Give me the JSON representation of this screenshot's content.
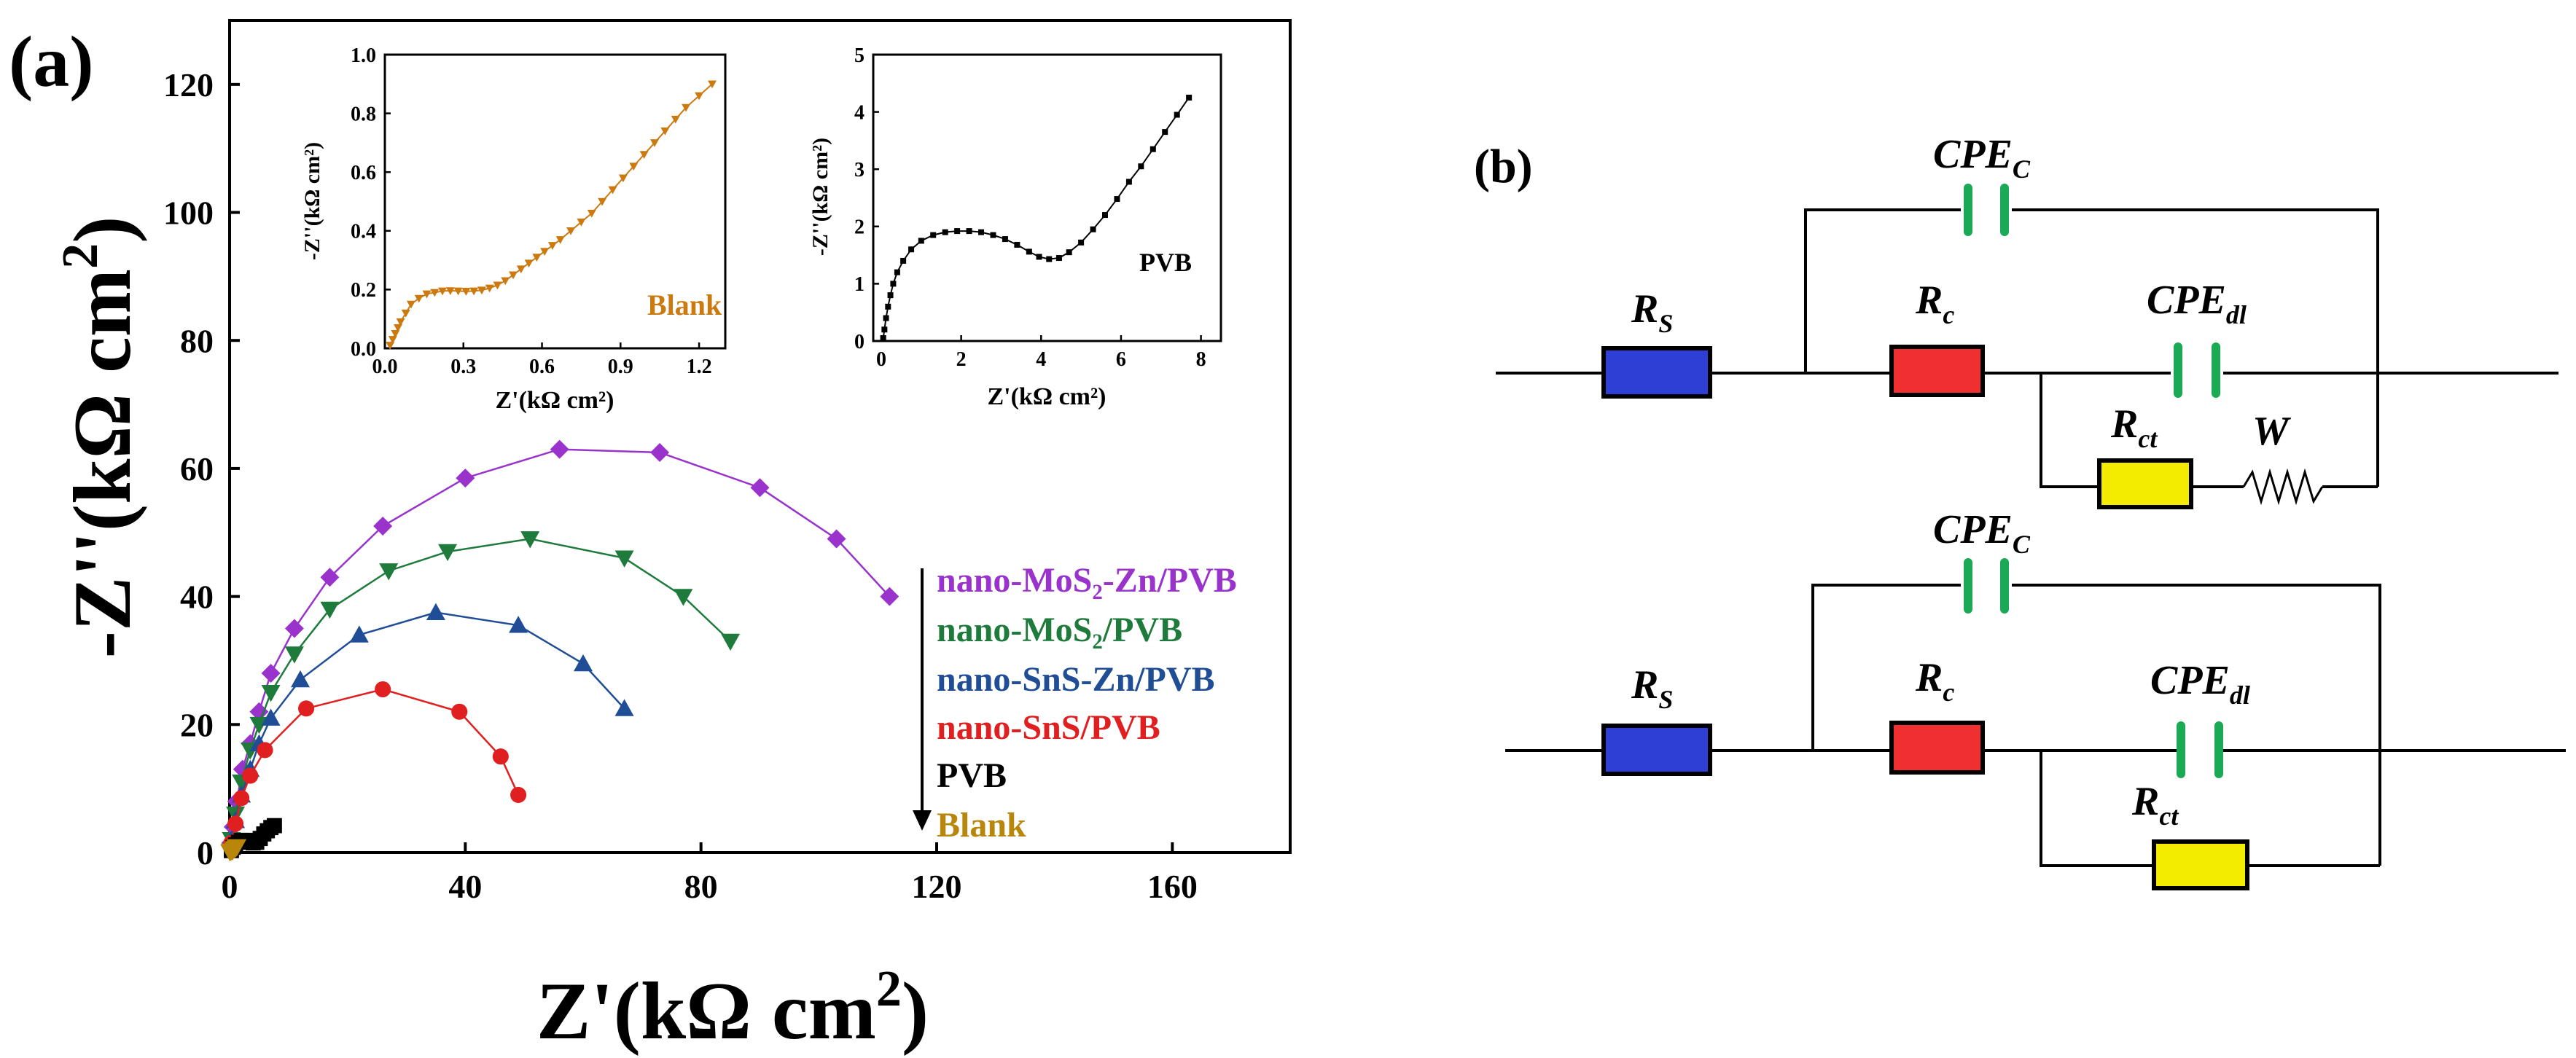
{
  "panel_a_label": "(a)",
  "panel_b_label": "(b)",
  "colors": {
    "mos2_zn": "#9933cc",
    "mos2": "#1e7b3c",
    "sns_zn": "#1f4e96",
    "sns": "#e02020",
    "pvb": "#000000",
    "blank": "#b8860b",
    "blank_inset": "#cc7a10",
    "resistor_blue": "#2e3fd6",
    "resistor_red": "#f03030",
    "resistor_yellow": "#f4ec00",
    "cpe_green": "#1aaa55"
  },
  "chart_data": [
    {
      "id": "main",
      "type": "scatter",
      "title": "",
      "xlabel_main": "Z'(kΩ cm",
      "xlabel_sup": "2",
      "xlabel_close": ")",
      "ylabel_main": "-Z''(kΩ cm",
      "ylabel_sup": "2",
      "ylabel_close": ")",
      "xlim": [
        0,
        180
      ],
      "ylim": [
        0,
        130
      ],
      "xticks": [
        "0",
        "40",
        "80",
        "120",
        "160"
      ],
      "xtick_values": [
        0,
        40,
        80,
        120,
        160
      ],
      "yticks": [
        "0",
        "20",
        "40",
        "60",
        "80",
        "100",
        "120"
      ],
      "ytick_values": [
        0,
        20,
        40,
        60,
        80,
        100,
        120
      ],
      "legend": [
        {
          "label": "nano-MoS₂-Zn/PVB",
          "series": "mos2_zn"
        },
        {
          "label": "nano-MoS₂/PVB",
          "series": "mos2"
        },
        {
          "label": "nano-SnS-Zn/PVB",
          "series": "sns_zn"
        },
        {
          "label": "nano-SnS/PVB",
          "series": "sns"
        },
        {
          "label": "PVB",
          "series": "pvb"
        },
        {
          "label": "Blank",
          "series": "blank"
        }
      ],
      "series": [
        {
          "name": "nano-MoS2-Zn/PVB",
          "key": "mos2_zn",
          "marker": "diamond",
          "x": [
            0.2,
            0.6,
            1.2,
            2.2,
            3.5,
            5,
            7,
            11,
            17,
            26,
            40,
            56,
            73,
            90,
            103,
            112
          ],
          "y": [
            1.5,
            4,
            8,
            13,
            17,
            22,
            28,
            35,
            43,
            51,
            58.5,
            63,
            62.5,
            57,
            49,
            40
          ]
        },
        {
          "name": "nano-MoS2/PVB",
          "key": "mos2",
          "marker": "triangle-down",
          "x": [
            0.3,
            1,
            2,
            3.5,
            5,
            7,
            11,
            17,
            27,
            37,
            51,
            67,
            77,
            85
          ],
          "y": [
            2,
            6,
            11,
            16,
            20,
            25,
            31,
            38,
            44,
            47,
            49,
            46,
            40,
            33
          ]
        },
        {
          "name": "nano-SnS-Zn/PVB",
          "key": "sns_zn",
          "marker": "triangle-up",
          "x": [
            0.3,
            1,
            2,
            3.5,
            5,
            7,
            12,
            22,
            35,
            49,
            60,
            67
          ],
          "y": [
            2,
            5,
            9,
            13,
            17,
            21,
            27,
            34,
            37.5,
            35.5,
            29.5,
            22.5
          ]
        },
        {
          "name": "nano-SnS/PVB",
          "key": "sns",
          "marker": "circle",
          "x": [
            0.3,
            1,
            2,
            3.5,
            6,
            13,
            26,
            39,
            46,
            49
          ],
          "y": [
            1.5,
            4.5,
            8.5,
            12,
            16,
            22.5,
            25.5,
            22,
            15,
            9
          ]
        },
        {
          "name": "PVB",
          "key": "pvb",
          "marker": "square",
          "x": [
            0.3,
            0.6,
            1,
            1.5,
            2,
            2.7,
            3.4,
            4,
            4.6,
            5.2,
            5.8,
            6.4,
            7,
            7.6
          ],
          "y": [
            0.3,
            0.8,
            1.2,
            1.6,
            1.9,
            1.9,
            1.7,
            1.5,
            1.6,
            2.2,
            2.9,
            3.4,
            3.9,
            4.2
          ]
        },
        {
          "name": "Blank",
          "key": "blank",
          "marker": "triangle-down",
          "x": [
            0.05,
            0.1,
            0.2,
            0.35,
            0.5,
            0.7,
            0.9,
            1.1,
            1.25
          ],
          "y": [
            0.05,
            0.15,
            0.2,
            0.2,
            0.25,
            0.45,
            0.6,
            0.78,
            0.9
          ]
        }
      ]
    },
    {
      "id": "inset_blank",
      "type": "scatter",
      "xlabel": "Z'(kΩ cm²)",
      "ylabel": "-Z''(kΩ cm²)",
      "annotation": "Blank",
      "xlim": [
        0,
        1.3
      ],
      "ylim": [
        0,
        1.0
      ],
      "xticks": [
        "0.0",
        "0.3",
        "0.6",
        "0.9",
        "1.2"
      ],
      "xtick_values": [
        0,
        0.3,
        0.6,
        0.9,
        1.2
      ],
      "yticks": [
        "0.0",
        "0.2",
        "0.4",
        "0.6",
        "0.8",
        "1.0"
      ],
      "ytick_values": [
        0,
        0.2,
        0.4,
        0.6,
        0.8,
        1.0
      ],
      "series": [
        {
          "name": "Blank",
          "key": "blank_inset",
          "marker": "triangle-down",
          "x": [
            0.02,
            0.03,
            0.04,
            0.05,
            0.06,
            0.08,
            0.1,
            0.13,
            0.16,
            0.19,
            0.22,
            0.25,
            0.28,
            0.31,
            0.34,
            0.37,
            0.4,
            0.43,
            0.46,
            0.49,
            0.52,
            0.55,
            0.58,
            0.61,
            0.64,
            0.67,
            0.71,
            0.75,
            0.79,
            0.83,
            0.87,
            0.91,
            0.95,
            0.99,
            1.03,
            1.07,
            1.11,
            1.15,
            1.2,
            1.25
          ],
          "y": [
            0.01,
            0.03,
            0.05,
            0.07,
            0.09,
            0.12,
            0.15,
            0.17,
            0.185,
            0.19,
            0.195,
            0.196,
            0.195,
            0.194,
            0.195,
            0.198,
            0.205,
            0.215,
            0.23,
            0.25,
            0.27,
            0.29,
            0.31,
            0.33,
            0.35,
            0.37,
            0.4,
            0.43,
            0.46,
            0.5,
            0.54,
            0.58,
            0.62,
            0.66,
            0.7,
            0.74,
            0.78,
            0.82,
            0.86,
            0.9
          ]
        }
      ]
    },
    {
      "id": "inset_pvb",
      "type": "scatter",
      "xlabel": "Z'(kΩ cm²)",
      "ylabel": "-Z''(kΩ cm²)",
      "annotation": "PVB",
      "xlim": [
        -0.2,
        8.5
      ],
      "ylim": [
        0,
        5
      ],
      "xticks": [
        "0",
        "2",
        "4",
        "6",
        "8"
      ],
      "xtick_values": [
        0,
        2,
        4,
        6,
        8
      ],
      "yticks": [
        "0",
        "1",
        "2",
        "3",
        "4",
        "5"
      ],
      "ytick_values": [
        0,
        1,
        2,
        3,
        4,
        5
      ],
      "series": [
        {
          "name": "PVB",
          "key": "pvb",
          "marker": "square",
          "x": [
            0.05,
            0.08,
            0.12,
            0.17,
            0.23,
            0.3,
            0.4,
            0.55,
            0.75,
            1.0,
            1.3,
            1.6,
            1.9,
            2.2,
            2.5,
            2.8,
            3.1,
            3.4,
            3.7,
            3.95,
            4.2,
            4.45,
            4.7,
            5.0,
            5.3,
            5.6,
            5.9,
            6.2,
            6.5,
            6.8,
            7.1,
            7.4,
            7.7
          ],
          "y": [
            0.05,
            0.2,
            0.4,
            0.6,
            0.8,
            1.0,
            1.2,
            1.4,
            1.6,
            1.75,
            1.85,
            1.9,
            1.92,
            1.92,
            1.9,
            1.85,
            1.78,
            1.68,
            1.56,
            1.47,
            1.43,
            1.45,
            1.55,
            1.72,
            1.95,
            2.2,
            2.48,
            2.78,
            3.05,
            3.35,
            3.65,
            3.95,
            4.25
          ]
        }
      ]
    }
  ],
  "circuits": {
    "top": {
      "rs": {
        "name": "R",
        "sub": "S"
      },
      "rc": {
        "name": "R",
        "sub": "c"
      },
      "cpe_c": {
        "name": "CPE",
        "sub": "C"
      },
      "cpe_dl": {
        "name": "CPE",
        "sub": "dl"
      },
      "rct": {
        "name": "R",
        "sub": "ct"
      },
      "w": {
        "name": "W"
      }
    },
    "bottom": {
      "rs": {
        "name": "R",
        "sub": "S"
      },
      "rc": {
        "name": "R",
        "sub": "c"
      },
      "cpe_c": {
        "name": "CPE",
        "sub": "C"
      },
      "cpe_dl": {
        "name": "CPE",
        "sub": "dl"
      },
      "rct": {
        "name": "R",
        "sub": "ct"
      }
    }
  }
}
